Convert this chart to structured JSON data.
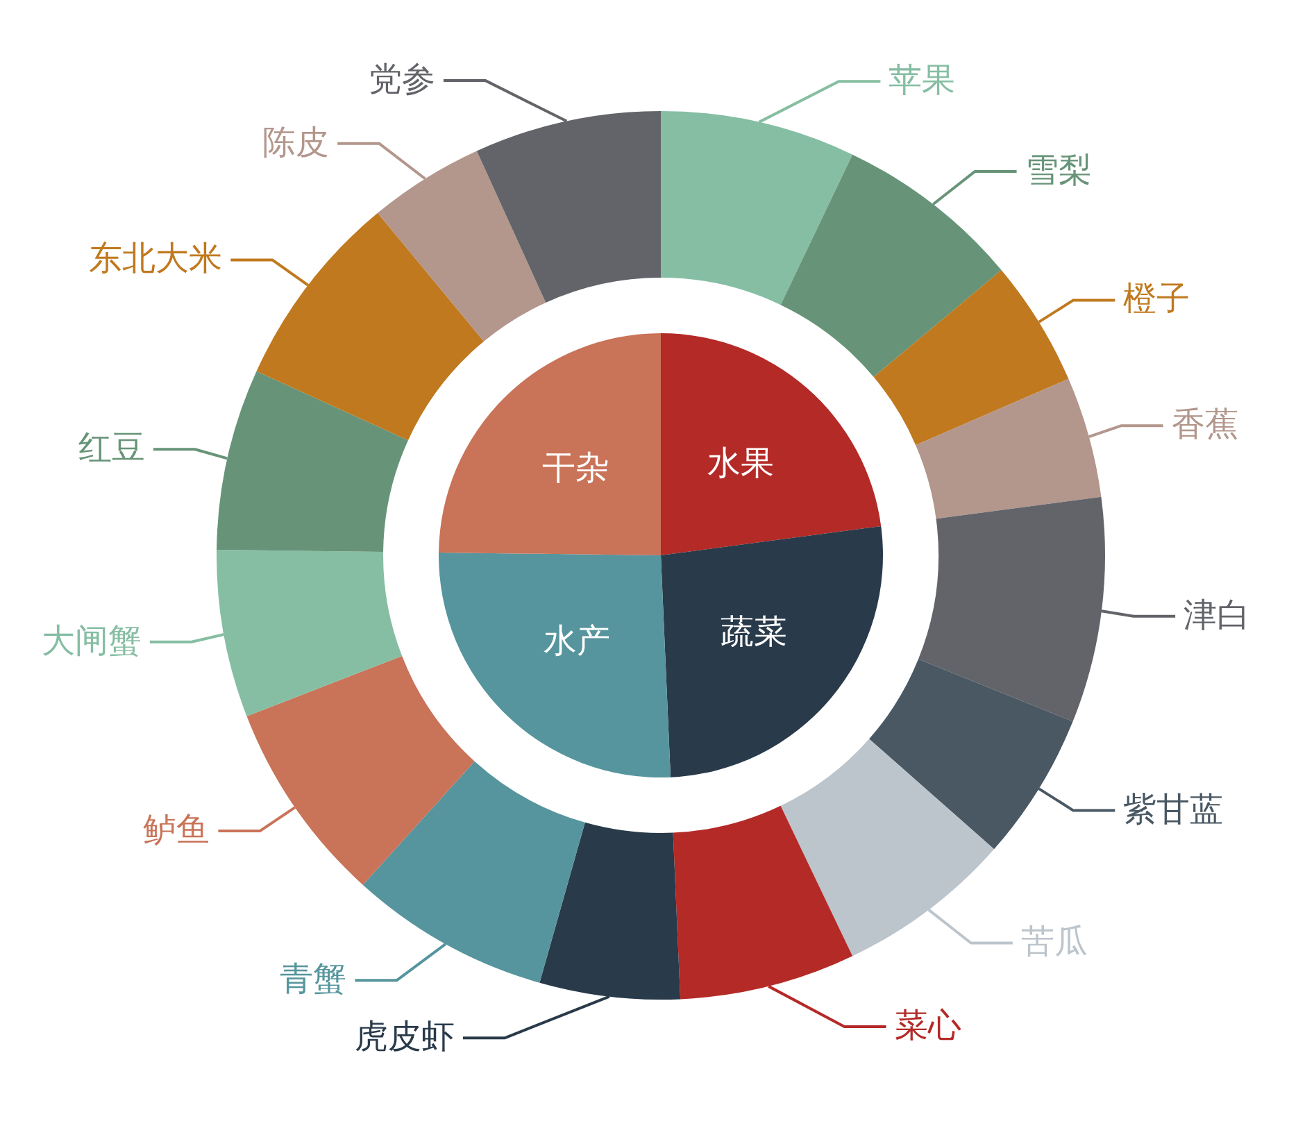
{
  "chart_data": [
    {
      "type": "pie",
      "categories": [
        "水果",
        "蔬菜",
        "水产",
        "干杂"
      ],
      "values": [
        22.9,
        26.4,
        25.9,
        24.8
      ],
      "colors": [
        "#b42a27",
        "#293a4a",
        "#56959d",
        "#c97358"
      ]
    },
    {
      "type": "donut",
      "categories": [
        "苹果",
        "雪梨",
        "橙子",
        "香蕉",
        "津白",
        "紫甘蓝",
        "苦瓜",
        "菜心",
        "虎皮虾",
        "青蟹",
        "鲈鱼",
        "大闸蟹",
        "红豆",
        "东北大米",
        "陈皮",
        "党参"
      ],
      "values": [
        7.1,
        6.8,
        4.6,
        4.4,
        8.2,
        5.4,
        6.4,
        6.4,
        5.1,
        7.3,
        7.4,
        6.1,
        6.6,
        7.2,
        4.2,
        6.8
      ],
      "colors": [
        "#86bea3",
        "#679478",
        "#c0791e",
        "#b3968c",
        "#626469",
        "#4a5863",
        "#bcc4cc",
        "#b42a27",
        "#293a4a",
        "#56959d",
        "#c97358",
        "#86bea3",
        "#679478",
        "#c0791e",
        "#b3968c",
        "#626469"
      ]
    }
  ]
}
